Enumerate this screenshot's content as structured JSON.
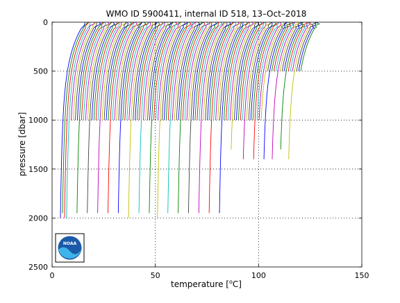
{
  "chart_data": {
    "type": "line",
    "title": "WMO ID 5900411, internal ID 518, 13–Oct–2018",
    "xlabel": "temperature [",
    "xlabel_unit": "C",
    "xlabel_suffix": "]",
    "xlabel_degree": "o",
    "ylabel": "pressure [dbar]",
    "xlim": [
      0,
      150
    ],
    "ylim": [
      0,
      2500
    ],
    "y_reversed": true,
    "xticks": [
      0,
      50,
      100,
      150
    ],
    "yticks": [
      0,
      500,
      1000,
      1500,
      2000,
      2500
    ],
    "xtick_labels": [
      "0",
      "50",
      "100",
      "150"
    ],
    "ytick_labels": [
      "0",
      "500",
      "1000",
      "1500",
      "2000",
      "2500"
    ],
    "grid": "dotted",
    "description_of_series": "Waterfall of successive temperature profiles, each offset by about 1 unit in temperature",
    "profile_offsets": [
      6.0,
      7.0,
      8.0,
      9.0,
      10.0,
      11.0,
      12.0,
      13.0,
      14.0,
      15.0,
      16.0,
      17.0,
      18.0,
      19.0,
      20.0,
      21.0,
      22.0,
      23.0,
      24.0,
      25.0,
      26.0,
      27.0,
      28.0,
      29.0,
      30.0,
      31.0,
      32.0,
      33.0,
      34.0,
      35.0,
      36.0,
      37.0,
      38.0,
      39.0,
      40.0,
      41.0,
      42.0,
      43.0,
      44.0,
      45.0,
      46.0,
      47.0,
      48.0,
      49.0,
      50.0,
      51.0,
      52.0,
      53.0,
      54.0,
      55.0,
      56.0,
      57.0,
      58.0,
      59.0,
      60.0,
      61.0,
      62.0,
      63.0,
      64.0,
      65.0,
      66.0,
      67.0,
      68.0,
      69.0,
      70.0,
      71.0,
      72.0,
      73.0,
      74.0,
      75.0,
      76.0,
      77.0,
      78.0,
      79.0,
      80.0,
      81.0,
      82.0,
      83.0,
      84.0,
      85.0,
      86.0,
      87.0,
      88.0,
      89.0,
      90.0,
      91.0,
      92.0,
      93.0,
      94.0,
      95.0,
      96.0,
      97.0,
      98.0,
      99.0,
      100.0,
      101.0,
      102.0,
      103.0,
      104.0,
      105.0,
      106.0,
      107.0,
      108.0,
      109.0,
      110.0,
      111.0,
      112.0,
      113.0,
      114.0,
      115.0,
      116.0,
      117.0,
      118.0,
      119.0
    ],
    "profile_max_pressure": [
      2000,
      1950,
      2000,
      2000,
      1000,
      1000,
      1000,
      1000,
      1950,
      1000,
      1000,
      1000,
      1000,
      1950,
      1000,
      1000,
      1000,
      1000,
      1950,
      1000,
      1000,
      1000,
      1000,
      1950,
      1000,
      1000,
      1000,
      1000,
      1950,
      1000,
      1000,
      1000,
      1000,
      2000,
      1000,
      1000,
      1000,
      1000,
      1950,
      1000,
      1000,
      1000,
      1000,
      1950,
      1000,
      1000,
      1000,
      2000,
      1000,
      1000,
      1000,
      1000,
      1950,
      1000,
      1000,
      1000,
      1000,
      1950,
      1000,
      1000,
      1000,
      1000,
      1950,
      1000,
      1000,
      1000,
      1000,
      1950,
      1000,
      1000,
      1000,
      1000,
      1950,
      1000,
      1000,
      1000,
      1000,
      1950,
      1000,
      1000,
      1000,
      1000,
      1300,
      1000,
      1000,
      1000,
      1000,
      1000,
      1400,
      1000,
      1000,
      1000,
      1000,
      1400,
      1000,
      1000,
      1000,
      500,
      1400,
      500,
      500,
      500,
      1400,
      500,
      500,
      500,
      1300,
      500,
      500,
      500,
      1400,
      500,
      500,
      500
    ],
    "colors": [
      "#0000ff",
      "#008000",
      "#ff0000",
      "#00bfbf",
      "#bf00bf",
      "#bfbf00",
      "#404040"
    ]
  },
  "logo": {
    "text": "NOAA"
  }
}
